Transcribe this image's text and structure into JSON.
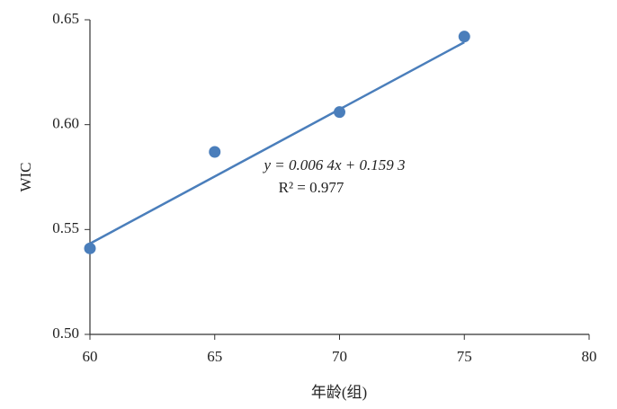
{
  "chart_data": {
    "type": "scatter",
    "x_label": "年龄(组)",
    "y_label": "WIC",
    "series": [
      {
        "color": "#4a7ebb",
        "x": [
          60,
          65,
          70,
          75
        ],
        "values": [
          0.541,
          0.587,
          0.606,
          0.642
        ]
      }
    ],
    "trendline": {
      "slope": 0.0064,
      "intercept": 0.1593,
      "label": "y = 0.006 4x + 0.159 3",
      "r2": 0.977,
      "r2_label": "R² = 0.977",
      "color": "#4a7ebb"
    },
    "xlim": [
      60,
      80
    ],
    "xticks": [
      60,
      65,
      70,
      75,
      80
    ],
    "ylim": [
      0.5,
      0.65
    ],
    "yticks": [
      {
        "value": 0.5,
        "label": "0.50"
      },
      {
        "value": 0.55,
        "label": "0.55"
      },
      {
        "value": 0.6,
        "label": "0.60"
      },
      {
        "value": 0.65,
        "label": "0.65"
      }
    ],
    "grid": false
  }
}
